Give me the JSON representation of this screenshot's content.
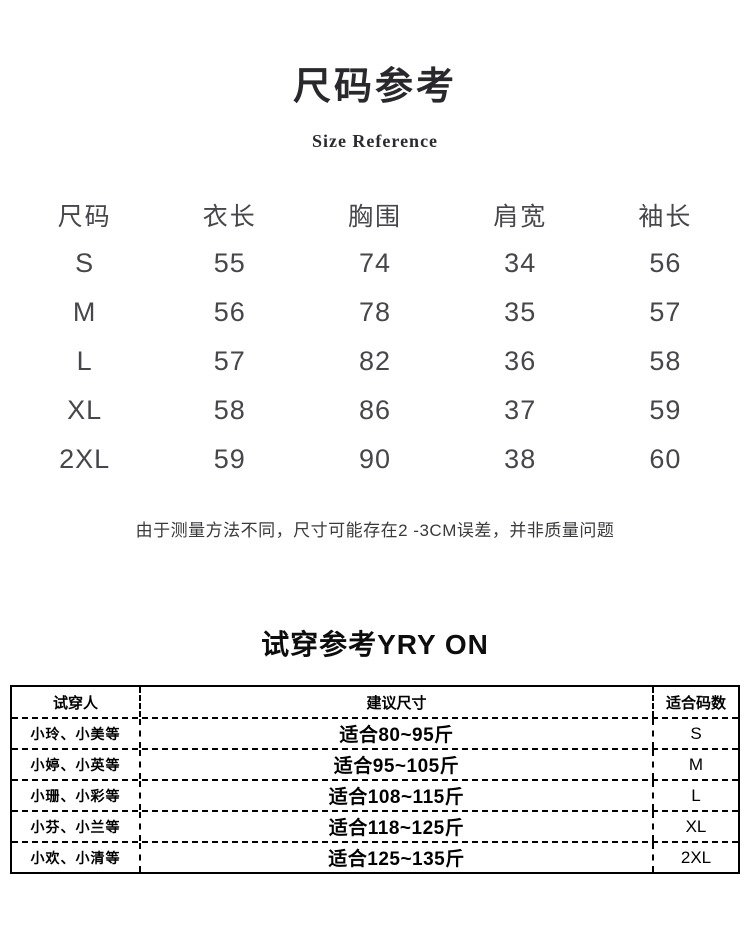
{
  "header": {
    "title": "尺码参考",
    "subtitle": "Size Reference"
  },
  "size_table": {
    "columns": [
      "尺码",
      "衣长",
      "胸围",
      "肩宽",
      "袖长"
    ],
    "rows": [
      {
        "size": "S",
        "length": "55",
        "bust": "74",
        "shoulder": "34",
        "sleeve": "56"
      },
      {
        "size": "M",
        "length": "56",
        "bust": "78",
        "shoulder": "35",
        "sleeve": "57"
      },
      {
        "size": "L",
        "length": "57",
        "bust": "82",
        "shoulder": "36",
        "sleeve": "58"
      },
      {
        "size": "XL",
        "length": "58",
        "bust": "86",
        "shoulder": "37",
        "sleeve": "59"
      },
      {
        "size": "2XL",
        "length": "59",
        "bust": "90",
        "shoulder": "38",
        "sleeve": "60"
      }
    ]
  },
  "note": "由于测量方法不同，尺寸可能存在2 -3CM误差，并非质量问题",
  "tryon": {
    "title": "试穿参考YRY ON",
    "columns": [
      "试穿人",
      "建议尺寸",
      "适合码数"
    ],
    "rows": [
      {
        "person": "小玲、小美等",
        "suggestion": "适合80~95斤",
        "size": "S"
      },
      {
        "person": "小婷、小英等",
        "suggestion": "适合95~105斤",
        "size": "M"
      },
      {
        "person": "小珊、小彩等",
        "suggestion": "适合108~115斤",
        "size": "L"
      },
      {
        "person": "小芬、小兰等",
        "suggestion": "适合118~125斤",
        "size": "XL"
      },
      {
        "person": "小欢、小清等",
        "suggestion": "适合125~135斤",
        "size": "2XL"
      }
    ]
  },
  "colors": {
    "title_text": "#29292d",
    "size_table_text": "#46464b",
    "note_text": "#3a3a3c",
    "tryon_text": "#000000",
    "background": "#ffffff"
  }
}
